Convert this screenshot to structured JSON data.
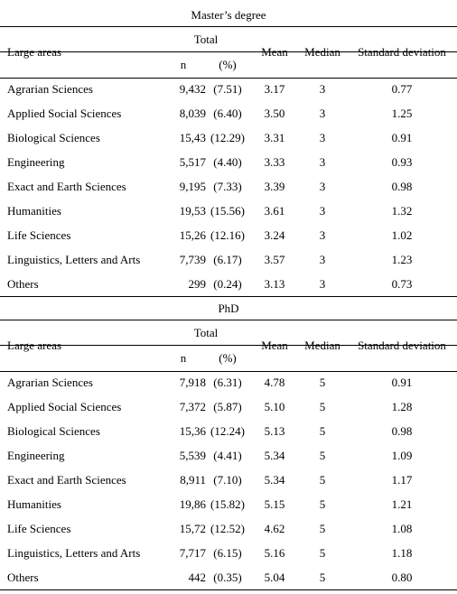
{
  "sections": [
    {
      "title": "Master’s degree",
      "header": {
        "group": "Total",
        "large_areas": "Large areas",
        "n": "n",
        "pct": "(%)",
        "mean": "Mean",
        "median": "Median",
        "sd": "Standard deviation"
      },
      "rows": [
        [
          "Agrarian Sciences",
          "9,432",
          "(7.51)",
          "3.17",
          "3",
          "0.77"
        ],
        [
          "Applied Social Sciences",
          "8,039",
          "(6.40)",
          "3.50",
          "3",
          "1.25"
        ],
        [
          "Biological Sciences",
          "15,43",
          "(12.29)",
          "3.31",
          "3",
          "0.91"
        ],
        [
          "Engineering",
          "5,517",
          "(4.40)",
          "3.33",
          "3",
          "0.93"
        ],
        [
          "Exact and Earth Sciences",
          "9,195",
          "(7.33)",
          "3.39",
          "3",
          "0.98"
        ],
        [
          "Humanities",
          "19,53",
          "(15.56)",
          "3.61",
          "3",
          "1.32"
        ],
        [
          "Life Sciences",
          "15,26",
          "(12.16)",
          "3.24",
          "3",
          "1.02"
        ],
        [
          "Linguistics, Letters and Arts",
          "7,739",
          "(6.17)",
          "3.57",
          "3",
          "1.23"
        ],
        [
          "Others",
          "299",
          "(0.24)",
          "3.13",
          "3",
          "0.73"
        ]
      ]
    },
    {
      "title": "PhD",
      "header": {
        "group": "Total",
        "large_areas": "Large areas",
        "n": "n",
        "pct": "(%)",
        "mean": "Mean",
        "median": "Median",
        "sd": "Standard deviation"
      },
      "rows": [
        [
          "Agrarian Sciences",
          "7,918",
          "(6.31)",
          "4.78",
          "5",
          "0.91"
        ],
        [
          "Applied Social Sciences",
          "7,372",
          "(5.87)",
          "5.10",
          "5",
          "1.28"
        ],
        [
          "Biological Sciences",
          "15,36",
          "(12.24)",
          "5.13",
          "5",
          "0.98"
        ],
        [
          "Engineering",
          "5,539",
          "(4.41)",
          "5.34",
          "5",
          "1.09"
        ],
        [
          "Exact and Earth Sciences",
          "8,911",
          "(7.10)",
          "5.34",
          "5",
          "1.17"
        ],
        [
          "Humanities",
          "19,86",
          "(15.82)",
          "5.15",
          "5",
          "1.21"
        ],
        [
          "Life Sciences",
          "15,72",
          "(12.52)",
          "4.62",
          "5",
          "1.08"
        ],
        [
          "Linguistics, Letters and Arts",
          "7,717",
          "(6.15)",
          "5.16",
          "5",
          "1.18"
        ],
        [
          "Others",
          "442",
          "(0.35)",
          "5.04",
          "5",
          "0.80"
        ]
      ]
    }
  ]
}
